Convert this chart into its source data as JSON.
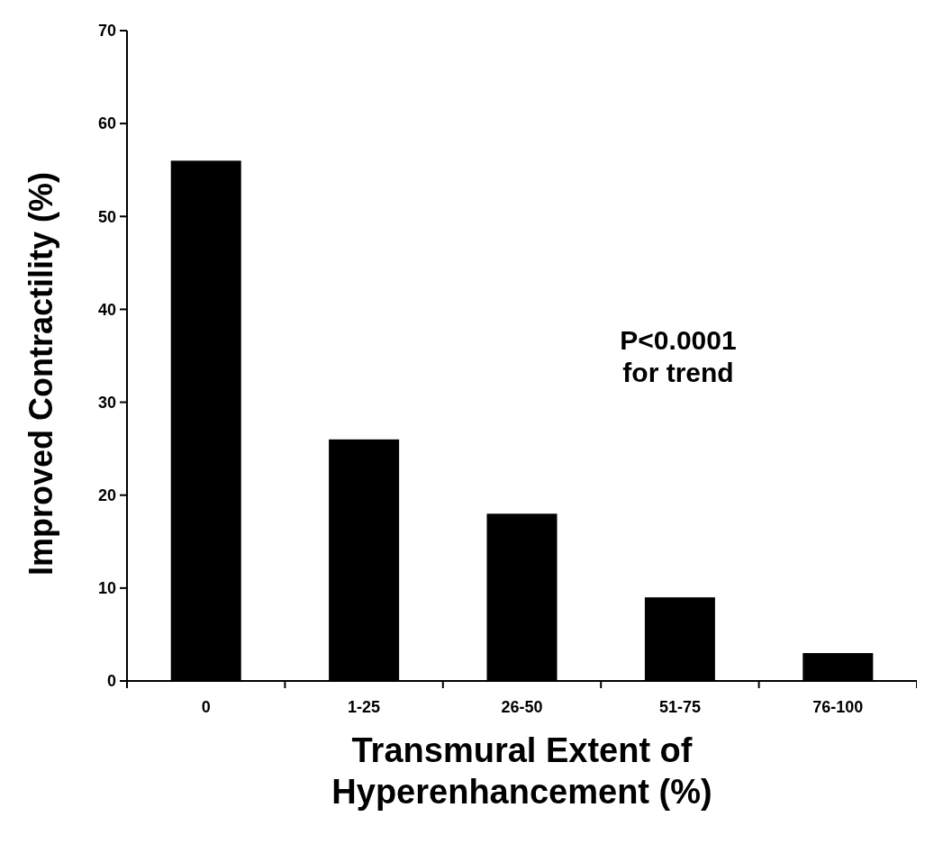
{
  "chart_data": {
    "type": "bar",
    "categories": [
      "0",
      "1-25",
      "26-50",
      "51-75",
      "76-100"
    ],
    "values": [
      56,
      26,
      18,
      9,
      3
    ],
    "color": "#000000",
    "ylim": [
      0,
      70
    ],
    "yticks": [
      0,
      10,
      20,
      30,
      40,
      50,
      60,
      70
    ],
    "ylabel": "Improved Contractility (%)",
    "xlabel": "Transmural Extent of\nHyperenhancement (%)",
    "annotations": [
      "P<0.0001\nfor trend"
    ],
    "grid": false
  }
}
